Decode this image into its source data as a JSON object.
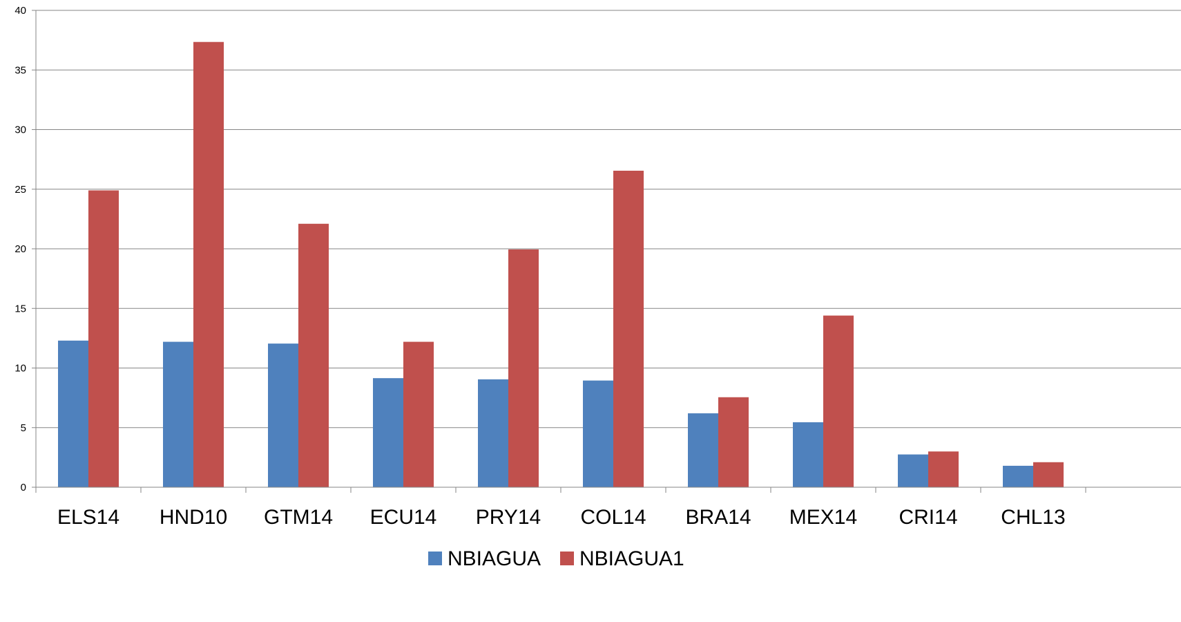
{
  "chart_data": {
    "type": "bar",
    "title": "",
    "xlabel": "",
    "ylabel": "",
    "categories": [
      "ELS14",
      "HND10",
      "GTM14",
      "ECU14",
      "PRY14",
      "COL14",
      "BRA14",
      "MEX14",
      "CRI14",
      "CHL13"
    ],
    "series": [
      {
        "name": "NBIAGUA",
        "color": "#4F81BD",
        "values": [
          12.3,
          12.2,
          12.05,
          9.15,
          9.05,
          8.95,
          6.2,
          5.45,
          2.75,
          1.8
        ]
      },
      {
        "name": "NBIAGUA1",
        "color": "#C0504D",
        "values": [
          24.9,
          37.35,
          22.1,
          12.2,
          19.95,
          26.55,
          7.55,
          14.4,
          3.0,
          2.1
        ]
      }
    ],
    "ylim": [
      0,
      40
    ],
    "yticks": [
      0,
      5,
      10,
      15,
      20,
      25,
      30,
      35,
      40
    ],
    "grid": true,
    "gridline_color": "#868686",
    "legend_position": "bottom-center"
  }
}
